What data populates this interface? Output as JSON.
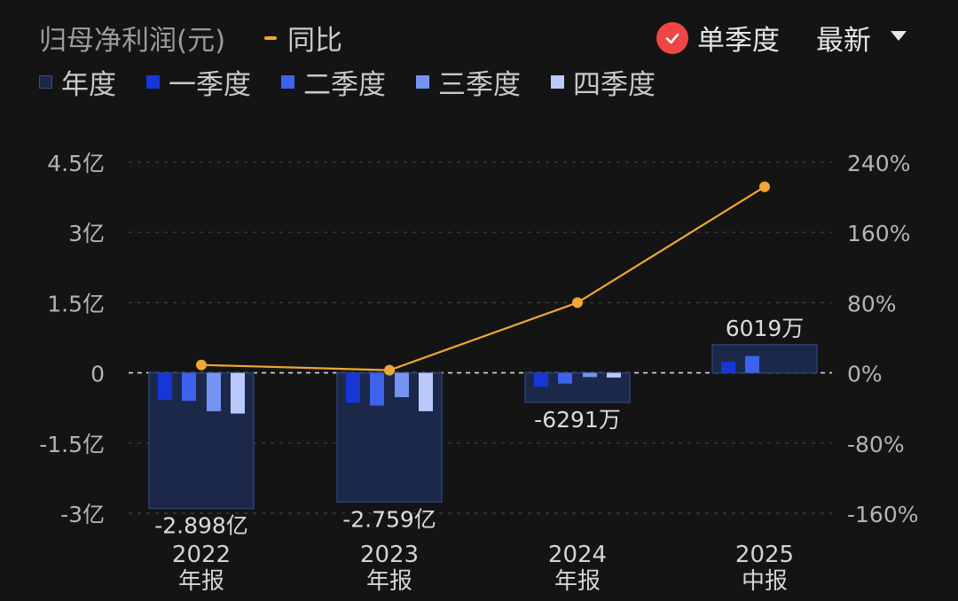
{
  "header": {
    "title": "归母净利润(元)",
    "yoy_label": "同比",
    "toggle_label": "单季度",
    "period_label": "最新"
  },
  "legend": [
    {
      "label": "年度",
      "color": "#1e2a4e"
    },
    {
      "label": "一季度",
      "color": "#1736d6"
    },
    {
      "label": "二季度",
      "color": "#3d63ec"
    },
    {
      "label": "三季度",
      "color": "#7594f2"
    },
    {
      "label": "四季度",
      "color": "#b9c9fb"
    }
  ],
  "colors": {
    "background": "#141414",
    "line": "#f0a733",
    "annual_fill": "#1c2849",
    "annual_border": "#2d3f72",
    "toggle_check": "#f04545"
  },
  "chart_data": {
    "type": "bar",
    "categories": [
      {
        "year": "2022",
        "report": "年报"
      },
      {
        "year": "2023",
        "report": "年报"
      },
      {
        "year": "2024",
        "report": "年报"
      },
      {
        "year": "2025",
        "report": "中报"
      }
    ],
    "annual_values": [
      -2.898,
      -2.759,
      -0.6291,
      0.6019
    ],
    "annual_labels": [
      "-2.898亿",
      "-2.759亿",
      "-6291万",
      "6019万"
    ],
    "quarterly_series": [
      {
        "name": "一季度",
        "values": [
          -0.58,
          -0.64,
          -0.3,
          0.24
        ]
      },
      {
        "name": "二季度",
        "values": [
          -0.6,
          -0.7,
          -0.23,
          0.36
        ]
      },
      {
        "name": "三季度",
        "values": [
          -0.82,
          -0.52,
          -0.09,
          null
        ]
      },
      {
        "name": "四季度",
        "values": [
          -0.87,
          -0.82,
          -0.1,
          null
        ]
      }
    ],
    "yoy_series": {
      "name": "同比",
      "values": [
        9,
        3,
        80,
        212
      ]
    },
    "left_axis": {
      "ylim": [
        -3,
        4.5
      ],
      "ticks": [
        4.5,
        3,
        1.5,
        0,
        -1.5,
        -3
      ],
      "tick_labels": [
        "4.5亿",
        "3亿",
        "1.5亿",
        "0",
        "-1.5亿",
        "-3亿"
      ]
    },
    "right_axis": {
      "ylim": [
        -160,
        240
      ],
      "ticks": [
        240,
        160,
        80,
        0,
        -80,
        -160
      ],
      "tick_labels": [
        "240%",
        "160%",
        "80%",
        "0%",
        "-80%",
        "-160%"
      ]
    },
    "grid": true
  }
}
